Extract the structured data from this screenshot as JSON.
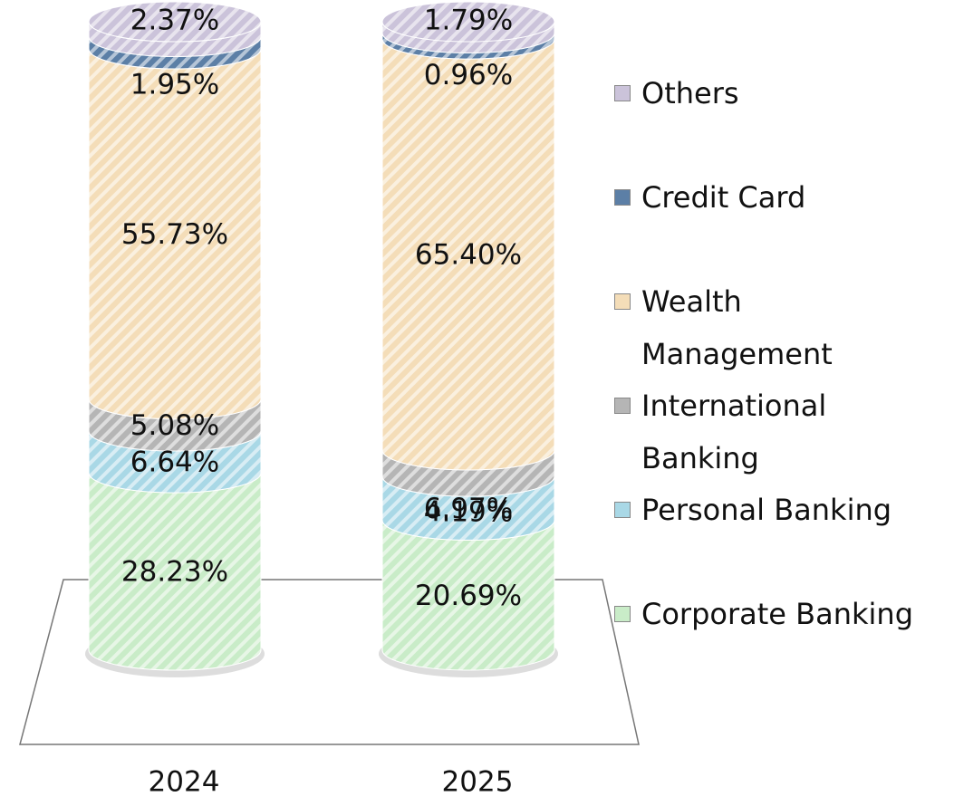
{
  "chart_data": {
    "type": "bar",
    "stacked": true,
    "categories": [
      "2024",
      "2025"
    ],
    "series": [
      {
        "name": "Corporate Banking",
        "color": "#c9ecc8",
        "values": [
          28.23,
          20.69
        ],
        "value_labels": [
          "28.23%",
          "20.69%"
        ]
      },
      {
        "name": "Personal Banking",
        "color": "#a9d8e6",
        "values": [
          6.64,
          6.97
        ],
        "value_labels": [
          "6.64%",
          "6.97%"
        ]
      },
      {
        "name": "International Banking",
        "color": "#b5b5b5",
        "values": [
          5.08,
          4.19
        ],
        "value_labels": [
          "5.08%",
          "4.19%"
        ]
      },
      {
        "name": "Wealth Management",
        "color": "#f4ddb8",
        "values": [
          55.73,
          65.4
        ],
        "value_labels": [
          "55.73%",
          "65.40%"
        ]
      },
      {
        "name": "Credit Card",
        "color": "#5c7fa6",
        "values": [
          1.95,
          0.96
        ],
        "value_labels": [
          "1.95%",
          "0.96%"
        ]
      },
      {
        "name": "Others",
        "color": "#cbc3da",
        "values": [
          2.37,
          1.79
        ],
        "value_labels": [
          "2.37%",
          "1.79%"
        ]
      }
    ]
  }
}
